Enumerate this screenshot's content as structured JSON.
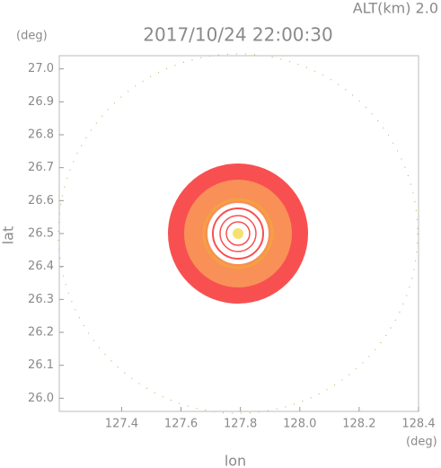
{
  "chart_data": {
    "type": "map",
    "title": "2017/10/24 22:00:30",
    "subtitle": "ALT(km)  2.0",
    "xlabel": "lon",
    "ylabel": "lat",
    "xunit": "(deg)",
    "yunit": "(deg)",
    "xlim": [
      127.19,
      128.4
    ],
    "ylim": [
      25.96,
      27.04
    ],
    "xticks": [
      127.4,
      127.6,
      127.8,
      {
        "value": 128.0,
        "label": "128.0"
      },
      128.2,
      128.4
    ],
    "yticks": [
      {
        "value": 26.0,
        "label": "26.0"
      },
      26.1,
      26.2,
      26.3,
      26.4,
      26.5,
      26.6,
      26.7,
      26.8,
      26.9,
      {
        "value": 27.0,
        "label": "27.0"
      }
    ]
  }
}
